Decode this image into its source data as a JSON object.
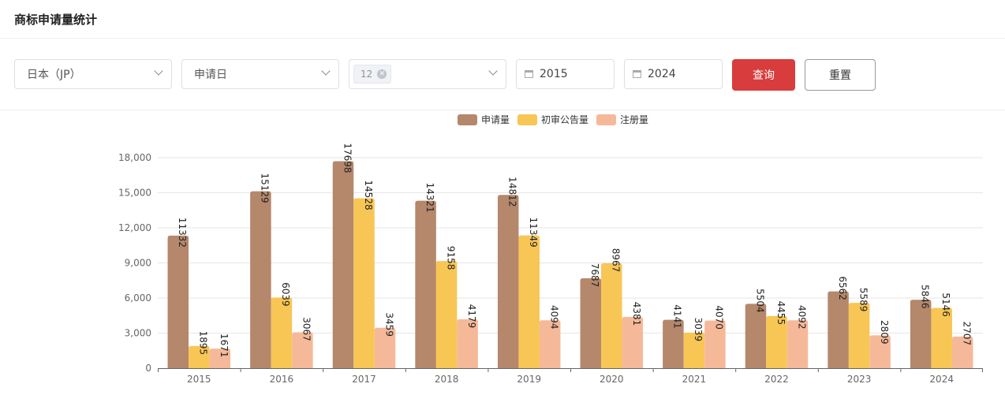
{
  "header": {
    "title": "商标申请量统计"
  },
  "filters": {
    "country": "日本（JP）",
    "date_type": "申请日",
    "tag": "12",
    "start_year": "2015",
    "end_year": "2024",
    "query_label": "查询",
    "reset_label": "重置"
  },
  "colors": {
    "primary": "#d93c3c"
  },
  "chart_data": {
    "type": "bar",
    "categories": [
      "2015",
      "2016",
      "2017",
      "2018",
      "2019",
      "2020",
      "2021",
      "2022",
      "2023",
      "2024"
    ],
    "series": [
      {
        "name": "申请量",
        "color": "#b5876b",
        "values": [
          11332,
          15129,
          17698,
          14321,
          14812,
          7687,
          4141,
          5504,
          6562,
          5846
        ]
      },
      {
        "name": "初审公告量",
        "color": "#f8c655",
        "values": [
          1895,
          6039,
          14528,
          9158,
          11349,
          8967,
          3039,
          4455,
          5589,
          5146
        ]
      },
      {
        "name": "注册量",
        "color": "#f5b999",
        "values": [
          1671,
          3067,
          3459,
          4179,
          4094,
          4381,
          4070,
          4092,
          2809,
          2707
        ]
      }
    ],
    "ylim": [
      0,
      18000
    ],
    "yticks": [
      "0",
      "3,000",
      "6,000",
      "9,000",
      "12,000",
      "15,000",
      "18,000"
    ],
    "grid": true,
    "legend": "top-center"
  }
}
